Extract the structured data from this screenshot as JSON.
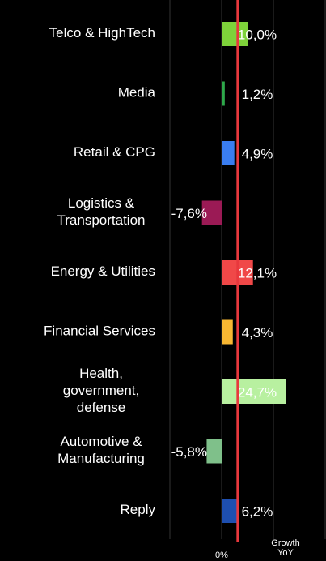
{
  "chart_data": {
    "type": "hbar",
    "categories": [
      "Telco & HighTech",
      "Media",
      "Retail & CPG",
      "Logistics &\nTransportation",
      "Energy & Utilities",
      "Financial Services",
      "Health,\ngovernment,\ndefense",
      "Automotive &\nManufacturing",
      "Reply"
    ],
    "values": [
      10.0,
      1.2,
      4.9,
      -7.6,
      12.1,
      4.3,
      24.7,
      -5.8,
      6.2
    ],
    "value_labels": [
      "10,0%",
      "1,2%",
      "4,9%",
      "-7,6%",
      "12,1%",
      "4,3%",
      "24,7%",
      "-5,8%",
      "6,2%"
    ],
    "colors": [
      "#7ed23a",
      "#2ea84a",
      "#3a7df0",
      "#9b1a55",
      "#f04848",
      "#f8b732",
      "#b8f0a0",
      "#7fc08a",
      "#1e4fb0"
    ],
    "xlabel": "Growth\nYoY",
    "xlim": [
      -25,
      40
    ],
    "xticks": [
      {
        "value": 0,
        "label": "0%"
      }
    ],
    "xgrid": [
      -20,
      0,
      20,
      40
    ],
    "reference_line": {
      "value": 6.2,
      "color": "#e8383d"
    },
    "grid": true
  }
}
